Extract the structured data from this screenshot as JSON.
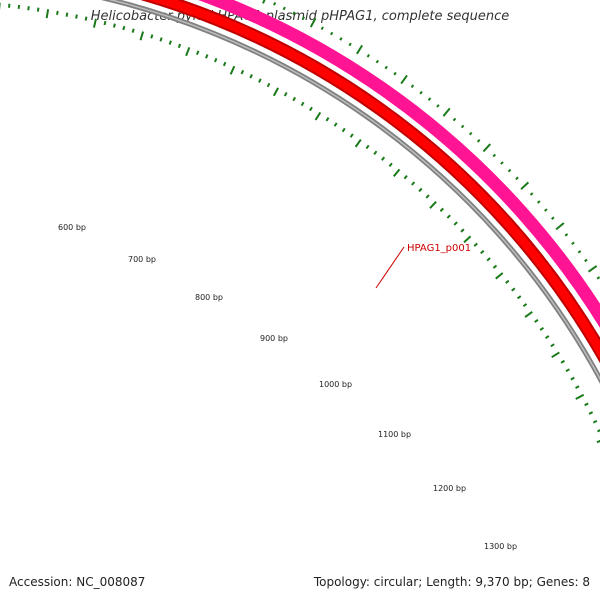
{
  "title": "Helicobacter pylori HPAG1 plasmid pHPAG1, complete sequence",
  "footer": {
    "accession": "Accession: NC_008087",
    "summary": "Topology: circular; Length: 9,370 bp; Genes: 8"
  },
  "colors": {
    "gene_track": "#ff1493",
    "cds_track": "#ff0000",
    "backbone": "#808080",
    "ticks": "#1a7a1a",
    "gene_label": "#cc0000"
  },
  "genes": [
    {
      "label": "HPAG1_p001"
    }
  ],
  "ticks": {
    "labels": [
      "600 bp",
      "700 bp",
      "800 bp",
      "900 bp",
      "1000 bp",
      "1100 bp",
      "1200 bp",
      "1300 bp"
    ]
  }
}
